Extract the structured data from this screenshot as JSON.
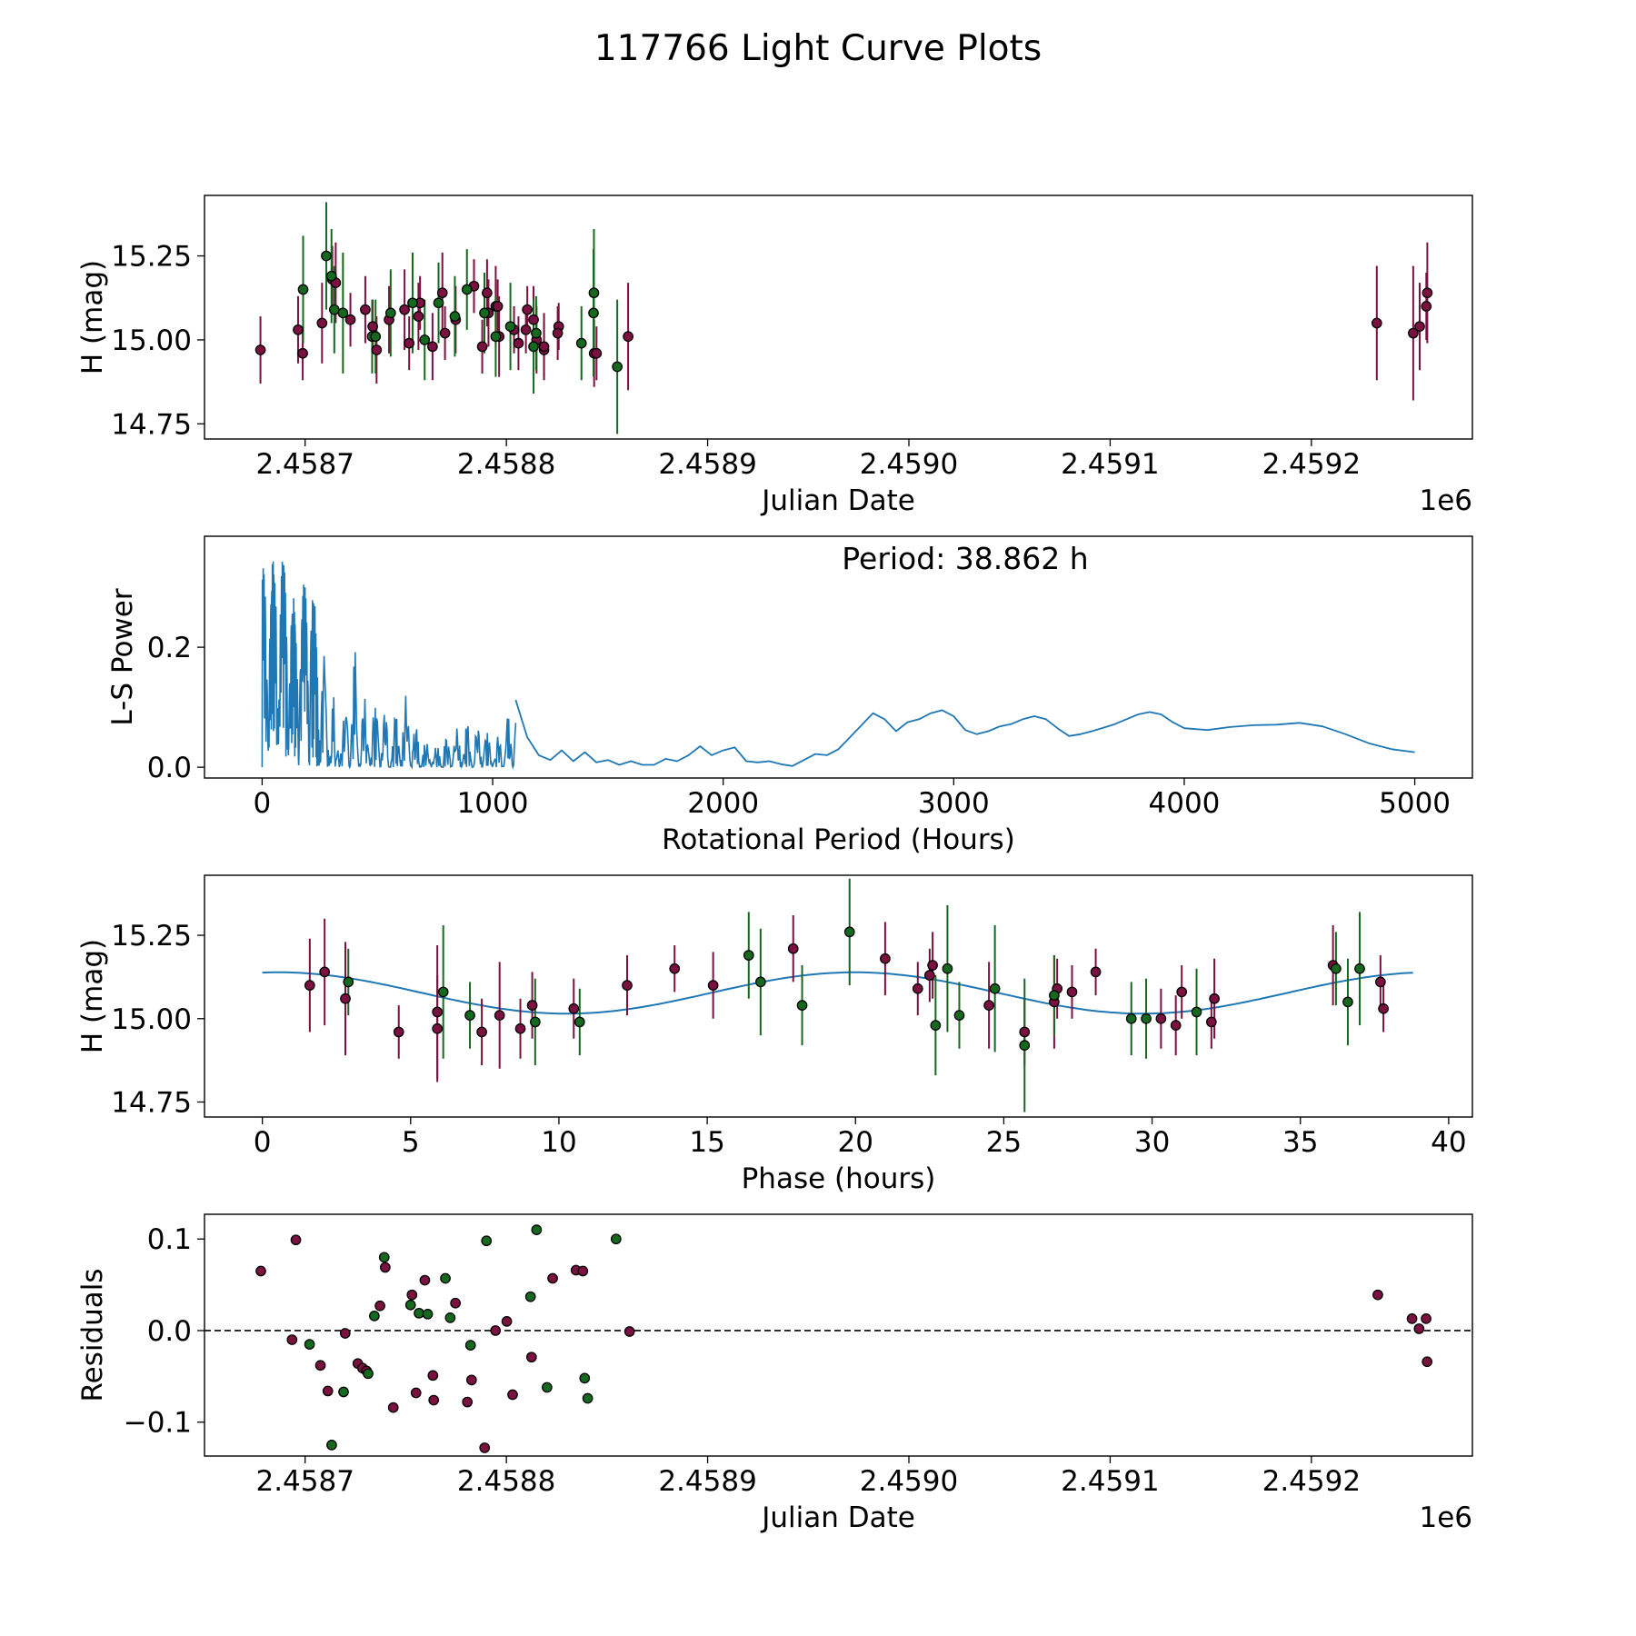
{
  "figure_title": "117766 Light Curve Plots",
  "colors": {
    "red_band": "#7a1140",
    "green_band": "#14691f",
    "periodogram": "#1f77b4",
    "fit_curve": "#1f77b4",
    "axes": "#000000"
  },
  "chart_data": [
    {
      "type": "scatter",
      "title": "",
      "xlabel": "Julian Date",
      "ylabel": "H (mag)",
      "offset_text": "1e6",
      "xlim": [
        2.45865,
        2.45928
      ],
      "ylim": [
        14.705,
        15.43
      ],
      "xticks": [
        2.4587,
        2.4588,
        2.4589,
        2.459,
        2.4591,
        2.4592
      ],
      "xtick_labels": [
        "2.4587",
        "2.4588",
        "2.4589",
        "2.4590",
        "2.4591",
        "2.4592"
      ],
      "yticks": [
        14.75,
        15.0,
        15.25
      ],
      "ytick_labels": [
        "14.75",
        "15.00",
        "15.25"
      ],
      "x_scale": 1000000,
      "series": [
        {
          "name": "red",
          "color": "#7a1140",
          "x": [
            2458677.8,
            2458696.5,
            2458698.8,
            2458708.4,
            2458713.5,
            2458715.2,
            2458722.5,
            2458729.9,
            2458733.6,
            2458735.5,
            2458741.7,
            2458749.4,
            2458751.7,
            2458757.1,
            2458756.3,
            2458763.3,
            2458768.2,
            2458774.8,
            2458769.5,
            2458783.9,
            2458788.0,
            2458791.1,
            2458796.4,
            2458790.4,
            2458794.7,
            2458803.8,
            2458806.0,
            2458810.4,
            2458813.5,
            2458795.7,
            2458809.7,
            2458818.7,
            2458815.0,
            2458818.7,
            2458826.0,
            2458825.5,
            2458843.6,
            2458844.8,
            2458860.5,
            2459232.5,
            2459250.6,
            2459253.8,
            2459257.6,
            2459257.1
          ],
          "y": [
            14.97,
            15.03,
            14.96,
            15.05,
            15.18,
            15.17,
            15.06,
            15.09,
            15.04,
            14.97,
            15.06,
            15.09,
            14.99,
            15.11,
            15.07,
            14.98,
            15.14,
            15.06,
            15.02,
            15.16,
            14.98,
            15.08,
            15.01,
            15.14,
            15.1,
            15.03,
            14.99,
            15.09,
            15.06,
            15.1,
            15.03,
            14.97,
            15.0,
            14.98,
            15.04,
            15.02,
            14.96,
            14.96,
            15.01,
            15.05,
            15.02,
            15.04,
            15.14,
            15.1
          ],
          "yerr": [
            0.1,
            0.1,
            0.08,
            0.12,
            0.1,
            0.12,
            0.08,
            0.1,
            0.08,
            0.1,
            0.1,
            0.12,
            0.08,
            0.08,
            0.1,
            0.1,
            0.12,
            0.1,
            0.08,
            0.08,
            0.08,
            0.1,
            0.12,
            0.1,
            0.12,
            0.07,
            0.08,
            0.07,
            0.1,
            0.08,
            0.07,
            0.08,
            0.1,
            0.1,
            0.07,
            0.08,
            0.1,
            0.08,
            0.16,
            0.17,
            0.2,
            0.13,
            0.15,
            0.1
          ]
        },
        {
          "name": "green",
          "color": "#14691f",
          "x": [
            2458699.0,
            2458710.5,
            2458714.5,
            2458718.8,
            2458713.1,
            2458733.3,
            2458735.0,
            2458742.5,
            2458753.4,
            2458759.4,
            2458774.4,
            2458766.3,
            2458789.1,
            2458780.4,
            2458802.0,
            2458794.7,
            2458813.5,
            2458837.3,
            2458843.5,
            2458843.3,
            2458855.1,
            2458814.8
          ],
          "y": [
            15.15,
            15.25,
            15.09,
            15.08,
            15.19,
            15.01,
            15.01,
            15.08,
            15.11,
            15.0,
            15.07,
            15.11,
            15.08,
            15.15,
            15.04,
            15.01,
            14.98,
            14.99,
            15.14,
            15.08,
            14.92,
            15.02
          ],
          "yerr": [
            0.16,
            0.16,
            0.13,
            0.18,
            0.14,
            0.11,
            0.11,
            0.13,
            0.15,
            0.12,
            0.12,
            0.12,
            0.12,
            0.12,
            0.13,
            0.12,
            0.14,
            0.11,
            0.19,
            0.19,
            0.2,
            0.11
          ]
        }
      ]
    },
    {
      "type": "line",
      "title": "",
      "xlabel": "Rotational Period (Hours)",
      "ylabel": "L-S Power",
      "annotation": "Period: 38.862 h",
      "xlim": [
        -250,
        5250
      ],
      "ylim": [
        -0.018,
        0.385
      ],
      "xticks": [
        0,
        1000,
        2000,
        3000,
        4000,
        5000
      ],
      "xtick_labels": [
        "0",
        "1000",
        "2000",
        "3000",
        "4000",
        "5000"
      ],
      "yticks": [
        0.0,
        0.2
      ],
      "ytick_labels": [
        "0.0",
        "0.2"
      ],
      "envelope": {
        "x": [
          0,
          40,
          80,
          120,
          160,
          200,
          260,
          330,
          360,
          400,
          450,
          520,
          580,
          630,
          680,
          750,
          820,
          900,
          950,
          1000,
          1060,
          1100
        ],
        "max": [
          0.33,
          0.35,
          0.37,
          0.3,
          0.26,
          0.35,
          0.2,
          0.1,
          0.09,
          0.2,
          0.12,
          0.1,
          0.09,
          0.125,
          0.055,
          0.035,
          0.06,
          0.075,
          0.07,
          0.05,
          0.08,
          0.115
        ]
      },
      "smooth": {
        "x": [
          1100,
          1150,
          1200,
          1250,
          1300,
          1350,
          1400,
          1450,
          1500,
          1550,
          1600,
          1650,
          1700,
          1750,
          1800,
          1850,
          1900,
          1950,
          2000,
          2050,
          2100,
          2150,
          2200,
          2250,
          2300,
          2350,
          2400,
          2450,
          2500,
          2550,
          2600,
          2650,
          2700,
          2750,
          2800,
          2850,
          2900,
          2950,
          3000,
          3050,
          3100,
          3150,
          3200,
          3250,
          3300,
          3350,
          3400,
          3450,
          3500,
          3550,
          3600,
          3650,
          3700,
          3750,
          3800,
          3850,
          3900,
          3950,
          4000,
          4100,
          4200,
          4300,
          4400,
          4500,
          4600,
          4700,
          4800,
          4900,
          5000
        ],
        "y": [
          0.112,
          0.05,
          0.02,
          0.012,
          0.028,
          0.01,
          0.025,
          0.008,
          0.012,
          0.004,
          0.01,
          0.004,
          0.004,
          0.014,
          0.01,
          0.02,
          0.035,
          0.02,
          0.028,
          0.033,
          0.01,
          0.008,
          0.01,
          0.005,
          0.002,
          0.012,
          0.022,
          0.02,
          0.03,
          0.05,
          0.07,
          0.09,
          0.08,
          0.06,
          0.075,
          0.08,
          0.09,
          0.095,
          0.085,
          0.062,
          0.055,
          0.06,
          0.068,
          0.072,
          0.08,
          0.085,
          0.08,
          0.065,
          0.052,
          0.055,
          0.06,
          0.066,
          0.072,
          0.08,
          0.088,
          0.092,
          0.088,
          0.075,
          0.065,
          0.062,
          0.067,
          0.07,
          0.071,
          0.074,
          0.068,
          0.055,
          0.04,
          0.03,
          0.025
        ]
      }
    },
    {
      "type": "scatter",
      "title": "",
      "xlabel": "Phase (hours)",
      "ylabel": "H (mag)",
      "xlim": [
        -1.95,
        40.8
      ],
      "ylim": [
        14.705,
        15.43
      ],
      "xticks": [
        0,
        5,
        10,
        15,
        20,
        25,
        30,
        35,
        40
      ],
      "xtick_labels": [
        "0",
        "5",
        "10",
        "15",
        "20",
        "25",
        "30",
        "35",
        "40"
      ],
      "yticks": [
        14.75,
        15.0,
        15.25
      ],
      "ytick_labels": [
        "14.75",
        "15.00",
        "15.25"
      ],
      "fit": {
        "mean": 15.077,
        "amplitude": 0.062,
        "phase_deg": 10,
        "period_hours": 38.862,
        "half_period_hours": 19.431
      },
      "series": [
        {
          "name": "red",
          "color": "#7a1140",
          "x": [
            1.6,
            2.1,
            2.8,
            4.6,
            5.9,
            5.9,
            7.4,
            8.0,
            8.7,
            9.1,
            10.5,
            12.3,
            13.9,
            15.2,
            17.9,
            21.0,
            22.1,
            22.5,
            22.6,
            24.5,
            25.7,
            26.7,
            26.8,
            27.3,
            28.1,
            30.3,
            30.8,
            31.0,
            32.0,
            32.1,
            36.1,
            37.7,
            37.8
          ],
          "y": [
            15.1,
            15.14,
            15.06,
            14.96,
            14.97,
            15.02,
            14.96,
            15.01,
            14.97,
            15.04,
            15.03,
            15.1,
            15.15,
            15.1,
            15.21,
            15.18,
            15.09,
            15.13,
            15.16,
            15.04,
            14.96,
            15.05,
            15.09,
            15.08,
            15.14,
            15.0,
            14.98,
            15.08,
            14.99,
            15.06,
            15.16,
            15.11,
            15.03
          ],
          "yerr": [
            0.14,
            0.16,
            0.17,
            0.08,
            0.16,
            0.2,
            0.1,
            0.16,
            0.09,
            0.1,
            0.09,
            0.09,
            0.07,
            0.1,
            0.1,
            0.11,
            0.08,
            0.08,
            0.1,
            0.13,
            0.1,
            0.14,
            0.09,
            0.08,
            0.07,
            0.09,
            0.09,
            0.08,
            0.08,
            0.12,
            0.12,
            0.08,
            0.07
          ]
        },
        {
          "name": "green",
          "color": "#14691f",
          "x": [
            2.9,
            6.1,
            7.0,
            9.2,
            10.7,
            16.4,
            16.8,
            18.2,
            19.8,
            22.7,
            23.1,
            23.5,
            24.7,
            25.7,
            26.7,
            29.3,
            29.8,
            31.5,
            36.2,
            36.6,
            37.0
          ],
          "y": [
            15.11,
            15.08,
            15.01,
            14.99,
            14.99,
            15.19,
            15.11,
            15.04,
            15.26,
            14.98,
            15.15,
            15.01,
            15.09,
            14.92,
            15.07,
            15.0,
            15.0,
            15.02,
            15.15,
            15.05,
            15.15
          ],
          "yerr": [
            0.1,
            0.2,
            0.1,
            0.13,
            0.1,
            0.13,
            0.16,
            0.12,
            0.16,
            0.15,
            0.19,
            0.1,
            0.19,
            0.2,
            0.12,
            0.11,
            0.12,
            0.13,
            0.11,
            0.13,
            0.17
          ]
        }
      ]
    },
    {
      "type": "scatter",
      "title": "",
      "xlabel": "Julian Date",
      "ylabel": "Residuals",
      "offset_text": "1e6",
      "xlim": [
        2.45865,
        2.45928
      ],
      "ylim": [
        -0.137,
        0.127
      ],
      "xticks": [
        2.4587,
        2.4588,
        2.4589,
        2.459,
        2.4591,
        2.4592
      ],
      "xtick_labels": [
        "2.4587",
        "2.4588",
        "2.4589",
        "2.4590",
        "2.4591",
        "2.4592"
      ],
      "yticks": [
        -0.1,
        0.0,
        0.1
      ],
      "ytick_labels": [
        "−0.1",
        "0.0",
        "0.1"
      ],
      "x_scale": 1000000,
      "reference_line": 0.0,
      "series": [
        {
          "name": "red",
          "color": "#7a1140",
          "x": [
            2458678.0,
            2458693.5,
            2458695.4,
            2458707.6,
            2458711.3,
            2458719.9,
            2458726.2,
            2458728.5,
            2458730.5,
            2458737.2,
            2458739.8,
            2458743.8,
            2458753.1,
            2458755.1,
            2458759.5,
            2458763.5,
            2458763.9,
            2458774.7,
            2458780.6,
            2458782.7,
            2458789.2,
            2458794.6,
            2458800.2,
            2458803.1,
            2458812.5,
            2458823.0,
            2458834.6,
            2458838.0,
            2458861.2,
            2459233.0,
            2459250.0,
            2459253.5,
            2459257.0,
            2459257.5
          ],
          "y": [
            0.065,
            -0.01,
            0.099,
            -0.038,
            -0.066,
            -0.003,
            -0.036,
            -0.041,
            -0.044,
            0.027,
            0.069,
            -0.084,
            0.039,
            -0.068,
            0.055,
            -0.049,
            -0.076,
            0.03,
            -0.078,
            -0.054,
            -0.128,
            0.0,
            0.01,
            -0.07,
            -0.029,
            0.057,
            0.066,
            0.065,
            -0.001,
            0.039,
            0.013,
            0.002,
            0.013,
            -0.034
          ],
          "yerr": []
        },
        {
          "name": "green",
          "color": "#14691f",
          "x": [
            2458702.2,
            2458713.2,
            2458719.1,
            2458731.3,
            2458734.4,
            2458739.3,
            2458752.4,
            2458756.6,
            2458760.9,
            2458769.7,
            2458772.1,
            2458782.2,
            2458790.1,
            2458812.0,
            2458815.0,
            2458820.2,
            2458840.4,
            2458838.9,
            2458854.5
          ],
          "y": [
            -0.015,
            -0.125,
            -0.067,
            -0.047,
            0.016,
            0.08,
            0.028,
            0.019,
            0.018,
            0.057,
            0.014,
            -0.016,
            0.098,
            0.037,
            0.11,
            -0.062,
            -0.074,
            -0.052,
            0.1
          ],
          "yerr": []
        }
      ]
    }
  ]
}
